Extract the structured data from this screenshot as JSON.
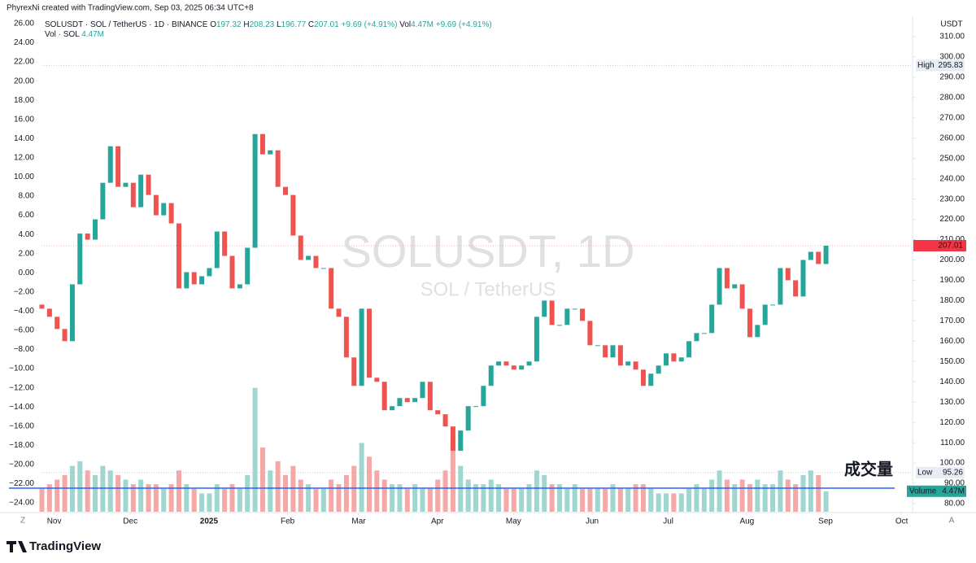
{
  "chart_data": {
    "type": "candlestick",
    "attribution": "PhyrexNi created with TradingView.com, Sep 03, 2025 06:34 UTC+8",
    "title": "SOLUSDT · SOL / TetherUS · 1D · BINANCE",
    "ohlc_labels": [
      "O",
      "H",
      "L",
      "C"
    ],
    "ohlc_values": [
      197.32,
      208.23,
      196.77,
      207.01
    ],
    "change_text": "+9.69 (+4.91%)",
    "volume_legend": "Vol",
    "volume_title": "Vol · SOL",
    "volume_value": {
      "value": 4.47,
      "label": "4.47M"
    },
    "watermark": "SOLUSDT, 1D",
    "watermark_sub": "SOL / TetherUS",
    "currency": "USDT",
    "high": {
      "name": "High",
      "value": 295.83
    },
    "low": {
      "name": "Low",
      "value": 95.26
    },
    "last": 207.01,
    "volume_tag": "Volume",
    "annotation": "成交量",
    "annotation_line": 87.6,
    "corner_buttons": [
      "Z",
      "A"
    ],
    "brand": "TradingView",
    "series": [
      {
        "name": "SOLUSDT",
        "up_color": "#26a69a",
        "down_color": "#ef5350",
        "open": [
          178,
          176,
          172,
          166,
          160,
          188,
          213,
          210,
          220,
          238,
          256,
          236,
          238,
          226,
          242,
          232,
          222,
          228,
          218,
          186,
          194,
          188,
          192,
          196,
          214,
          202,
          186,
          188,
          206,
          262,
          252,
          254,
          236,
          232,
          212,
          200,
          202,
          196,
          196,
          176,
          172,
          152,
          138,
          176,
          142,
          140,
          126,
          128,
          132,
          130,
          132,
          140,
          126,
          124,
          118,
          106,
          116,
          128,
          128,
          138,
          148,
          150,
          148,
          146,
          148,
          150,
          172,
          180,
          168,
          168,
          176,
          176,
          170,
          158,
          158,
          152,
          158,
          148,
          150,
          146,
          138,
          144,
          148,
          154,
          150,
          152,
          160,
          164,
          164,
          178,
          196,
          186,
          188,
          176,
          162,
          168,
          178,
          178,
          196,
          190,
          182,
          200,
          204,
          198
        ],
        "close": [
          176,
          172,
          166,
          160,
          188,
          213,
          210,
          220,
          238,
          256,
          236,
          238,
          226,
          242,
          232,
          222,
          228,
          218,
          186,
          194,
          188,
          192,
          196,
          214,
          202,
          186,
          188,
          206,
          262,
          252,
          254,
          236,
          232,
          212,
          200,
          202,
          196,
          196,
          176,
          172,
          152,
          138,
          176,
          142,
          140,
          126,
          128,
          132,
          130,
          132,
          140,
          126,
          124,
          118,
          106,
          116,
          128,
          128,
          138,
          148,
          150,
          148,
          146,
          148,
          150,
          172,
          180,
          168,
          168,
          176,
          176,
          170,
          158,
          158,
          152,
          158,
          148,
          150,
          146,
          138,
          144,
          148,
          154,
          150,
          152,
          160,
          164,
          164,
          178,
          196,
          186,
          188,
          176,
          162,
          168,
          178,
          178,
          196,
          190,
          182,
          200,
          204,
          198,
          207.01
        ]
      }
    ],
    "volume": {
      "up_color": "#9fd6d0",
      "down_color": "#f5a9a7",
      "values": [
        5,
        6,
        7,
        8,
        10,
        11,
        9,
        8,
        10,
        9,
        8,
        7,
        6,
        7,
        6,
        6,
        5,
        6,
        9,
        6,
        5,
        4,
        4,
        6,
        5,
        6,
        5,
        8,
        27,
        14,
        9,
        11,
        8,
        10,
        7,
        6,
        5,
        5,
        7,
        6,
        8,
        10,
        15,
        12,
        9,
        7,
        6,
        6,
        5,
        6,
        5,
        5,
        7,
        9,
        16,
        10,
        7,
        6,
        6,
        7,
        6,
        5,
        5,
        5,
        6,
        9,
        8,
        6,
        6,
        5,
        6,
        5,
        5,
        5,
        5,
        6,
        5,
        5,
        6,
        6,
        5,
        4,
        4,
        4,
        4,
        5,
        6,
        5,
        7,
        9,
        7,
        6,
        7,
        6,
        7,
        6,
        6,
        9,
        7,
        6,
        8,
        9,
        8,
        4.47
      ]
    },
    "volume_lim": [
      0,
      108
    ],
    "ylim": [
      76,
      320
    ],
    "yticks": [
      {
        "value": 310,
        "label": "310.00"
      },
      {
        "value": 300,
        "label": "300.00"
      },
      {
        "value": 290,
        "label": "290.00"
      },
      {
        "value": 280,
        "label": "280.00"
      },
      {
        "value": 270,
        "label": "270.00"
      },
      {
        "value": 260,
        "label": "260.00"
      },
      {
        "value": 250,
        "label": "250.00"
      },
      {
        "value": 240,
        "label": "240.00"
      },
      {
        "value": 230,
        "label": "230.00"
      },
      {
        "value": 220,
        "label": "220.00"
      },
      {
        "value": 210,
        "label": "210.00"
      },
      {
        "value": 200,
        "label": "200.00"
      },
      {
        "value": 190,
        "label": "190.00"
      },
      {
        "value": 180,
        "label": "180.00"
      },
      {
        "value": 170,
        "label": "170.00"
      },
      {
        "value": 160,
        "label": "160.00"
      },
      {
        "value": 150,
        "label": "150.00"
      },
      {
        "value": 140,
        "label": "140.00"
      },
      {
        "value": 130,
        "label": "130.00"
      },
      {
        "value": 120,
        "label": "120.00"
      },
      {
        "value": 110,
        "label": "110.00"
      },
      {
        "value": 100,
        "label": "100.00"
      },
      {
        "value": 90,
        "label": "90.00"
      },
      {
        "value": 80,
        "label": "80.00"
      }
    ],
    "y2lim": [
      -24.93,
      26.76
    ],
    "y2ticks": [
      {
        "value": 26,
        "label": "26.00"
      },
      {
        "value": 24,
        "label": "24.00"
      },
      {
        "value": 22,
        "label": "22.00"
      },
      {
        "value": 20,
        "label": "20.00"
      },
      {
        "value": 18,
        "label": "18.00"
      },
      {
        "value": 16,
        "label": "16.00"
      },
      {
        "value": 14,
        "label": "14.00"
      },
      {
        "value": 12,
        "label": "12.00"
      },
      {
        "value": 10,
        "label": "10.00"
      },
      {
        "value": 8,
        "label": "8.00"
      },
      {
        "value": 6,
        "label": "6.00"
      },
      {
        "value": 4,
        "label": "4.00"
      },
      {
        "value": 2,
        "label": "2.00"
      },
      {
        "value": 0,
        "label": "0.00"
      },
      {
        "value": -2,
        "label": "−2.00"
      },
      {
        "value": -4,
        "label": "−4.00"
      },
      {
        "value": -6,
        "label": "−6.00"
      },
      {
        "value": -8,
        "label": "−8.00"
      },
      {
        "value": -10,
        "label": "−10.00"
      },
      {
        "value": -12,
        "label": "−12.00"
      },
      {
        "value": -14,
        "label": "−14.00"
      },
      {
        "value": -16,
        "label": "−16.00"
      },
      {
        "value": -18,
        "label": "−18.00"
      },
      {
        "value": -20,
        "label": "−20.00"
      },
      {
        "value": -22,
        "label": "−22.00"
      },
      {
        "value": -24,
        "label": "−24.00"
      }
    ],
    "xlim": [
      0,
      115
    ],
    "xticks": [
      {
        "value": 1.667,
        "label": "Nov"
      },
      {
        "value": 11.667,
        "label": "Dec"
      },
      {
        "value": 22,
        "label": "2025",
        "bold": true
      },
      {
        "value": 32.333,
        "label": "Feb"
      },
      {
        "value": 41.667,
        "label": "Mar"
      },
      {
        "value": 52,
        "label": "Apr"
      },
      {
        "value": 62,
        "label": "May"
      },
      {
        "value": 72.333,
        "label": "Jun"
      },
      {
        "value": 82.333,
        "label": "Jul"
      },
      {
        "value": 92.667,
        "label": "Aug"
      },
      {
        "value": 103,
        "label": "Sep"
      },
      {
        "value": 113,
        "label": "Oct"
      }
    ]
  }
}
